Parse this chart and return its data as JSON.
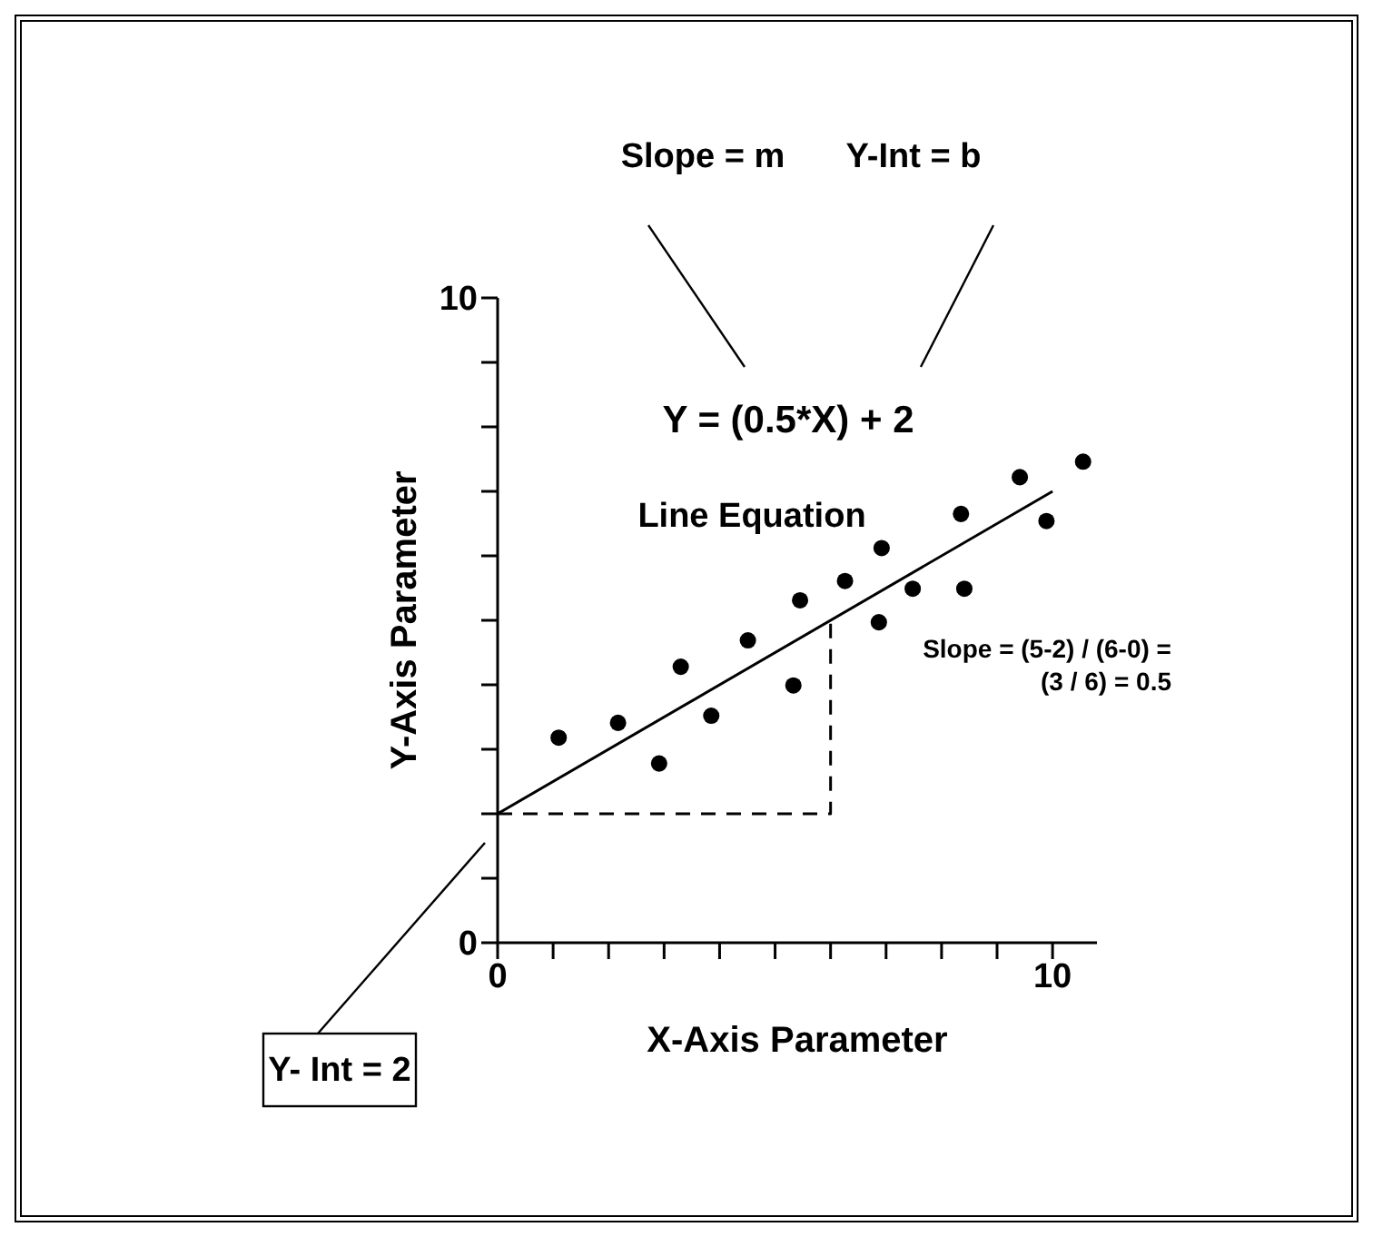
{
  "chart_data": {
    "type": "scatter",
    "xlabel": "X-Axis Parameter",
    "ylabel": "Y-Axis Parameter",
    "xlim": [
      0,
      10.8
    ],
    "ylim": [
      0,
      10
    ],
    "xticks": [
      0,
      {
        "value": 1,
        "label": null
      },
      {
        "value": 2,
        "label": null
      },
      {
        "value": 3,
        "label": null
      },
      {
        "value": 4,
        "label": null
      },
      {
        "value": 5,
        "label": null
      },
      {
        "value": 6,
        "label": null
      },
      {
        "value": 7,
        "label": null
      },
      {
        "value": 8,
        "label": null
      },
      {
        "value": 9,
        "label": null
      },
      10
    ],
    "yticks": [
      0,
      {
        "value": 1,
        "label": null
      },
      {
        "value": 2,
        "label": null
      },
      {
        "value": 3,
        "label": null
      },
      {
        "value": 4,
        "label": null
      },
      {
        "value": 5,
        "label": null
      },
      {
        "value": 6,
        "label": null
      },
      {
        "value": 7,
        "label": null
      },
      {
        "value": 8,
        "label": null
      },
      {
        "value": 9,
        "label": null
      },
      10
    ],
    "series": [
      {
        "marker": "circle",
        "color": "#000000",
        "x": [
          1.1,
          2.17,
          2.91,
          3.3,
          3.85,
          4.51,
          5.33,
          5.45,
          6.26,
          6.87,
          6.92,
          7.48,
          8.35,
          8.41,
          9.41,
          9.89,
          10.55
        ],
        "values": [
          3.18,
          3.41,
          2.78,
          4.28,
          3.52,
          4.69,
          3.99,
          5.31,
          5.61,
          4.97,
          6.12,
          5.49,
          6.65,
          5.49,
          7.22,
          6.54,
          7.46
        ]
      },
      {
        "type": "line",
        "color": "#000000",
        "x": [
          0,
          10
        ],
        "values": [
          2,
          7
        ],
        "line_style": "solid"
      },
      {
        "type": "line",
        "color": "#000000",
        "x": [
          0,
          6,
          6
        ],
        "values": [
          2,
          2,
          5
        ],
        "line_style": "dashed"
      }
    ],
    "annotations": [
      "Slope = m",
      "Y-Int = b",
      "Y = (0.5*X) + 2",
      "Line Equation",
      "Slope = (5-2) / (6-0) =\n(3 / 6) = 0.5",
      "Y- Int = 2"
    ]
  }
}
